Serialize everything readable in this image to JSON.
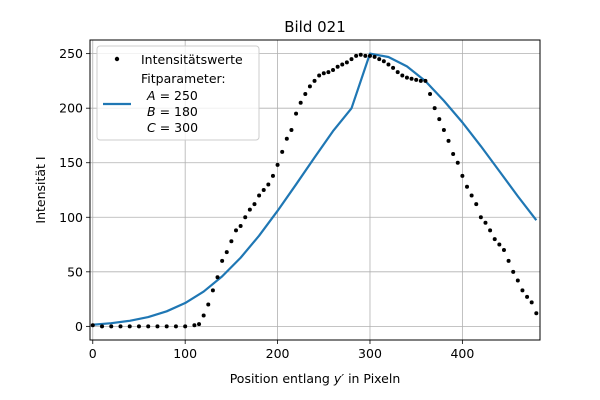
{
  "chart_data": {
    "type": "scatter",
    "title": "Bild 021",
    "xlabel_prefix": "Position entlang ",
    "xlabel_var": "y′",
    "xlabel_suffix": " in Pixeln",
    "ylabel": "Intensität I",
    "xlim": [
      -3,
      484
    ],
    "ylim": [
      -12.5,
      262.5
    ],
    "xticks": [
      0,
      100,
      200,
      300,
      400
    ],
    "yticks": [
      0,
      50,
      100,
      150,
      200,
      250
    ],
    "grid": true,
    "legend_position": "top-left",
    "colors": {
      "points": "#000000",
      "fit": "#1f77b4",
      "grid": "#b0b0b0"
    },
    "series": [
      {
        "name": "Intensitätswerte",
        "kind": "points",
        "x": [
          0,
          10,
          20,
          30,
          40,
          50,
          60,
          70,
          80,
          90,
          100,
          110,
          115,
          120,
          125,
          130,
          135,
          140,
          145,
          150,
          155,
          160,
          165,
          170,
          175,
          180,
          185,
          190,
          195,
          200,
          205,
          210,
          215,
          220,
          225,
          230,
          235,
          240,
          245,
          250,
          255,
          260,
          265,
          270,
          275,
          280,
          285,
          290,
          295,
          300,
          305,
          310,
          315,
          320,
          325,
          330,
          335,
          340,
          345,
          350,
          355,
          360,
          365,
          370,
          375,
          380,
          385,
          390,
          395,
          400,
          405,
          410,
          415,
          420,
          425,
          430,
          435,
          440,
          445,
          450,
          455,
          460,
          465,
          470,
          475,
          480
        ],
        "y": [
          1,
          0,
          0,
          0,
          0,
          0,
          0,
          0,
          0,
          0,
          0,
          1,
          2,
          10,
          20,
          33,
          45,
          60,
          68,
          78,
          88,
          92,
          100,
          107,
          112,
          120,
          125,
          130,
          138,
          148,
          160,
          172,
          180,
          195,
          205,
          213,
          220,
          225,
          230,
          232,
          233,
          235,
          238,
          240,
          242,
          245,
          248,
          249,
          248,
          248,
          247,
          245,
          243,
          240,
          237,
          233,
          230,
          228,
          227,
          226,
          225,
          225,
          213,
          200,
          190,
          180,
          170,
          158,
          150,
          138,
          128,
          120,
          112,
          100,
          95,
          88,
          80,
          75,
          70,
          60,
          50,
          42,
          33,
          27,
          22,
          12
        ]
      },
      {
        "name": "Fitparameter:",
        "kind": "fit",
        "x": [
          0,
          20,
          40,
          60,
          80,
          100,
          120,
          140,
          160,
          180,
          200,
          220,
          240,
          260,
          280,
          300,
          320,
          340,
          360,
          380,
          400,
          420,
          440,
          460,
          480
        ],
        "y": [
          1.5,
          2.9,
          5.1,
          8.5,
          13.8,
          21.4,
          31.9,
          45.8,
          62.9,
          83.1,
          105.9,
          130.1,
          154.8,
          179.0,
          199.9,
          250,
          246.9,
          238.3,
          224.8,
          206.8,
          187.0,
          165.2,
          142.3,
          119.3,
          97.3
        ]
      }
    ],
    "legend_params": [
      {
        "name": "A",
        "value": "= 250"
      },
      {
        "name": "B",
        "value": "= 180"
      },
      {
        "name": "C",
        "value": "= 300"
      }
    ]
  }
}
